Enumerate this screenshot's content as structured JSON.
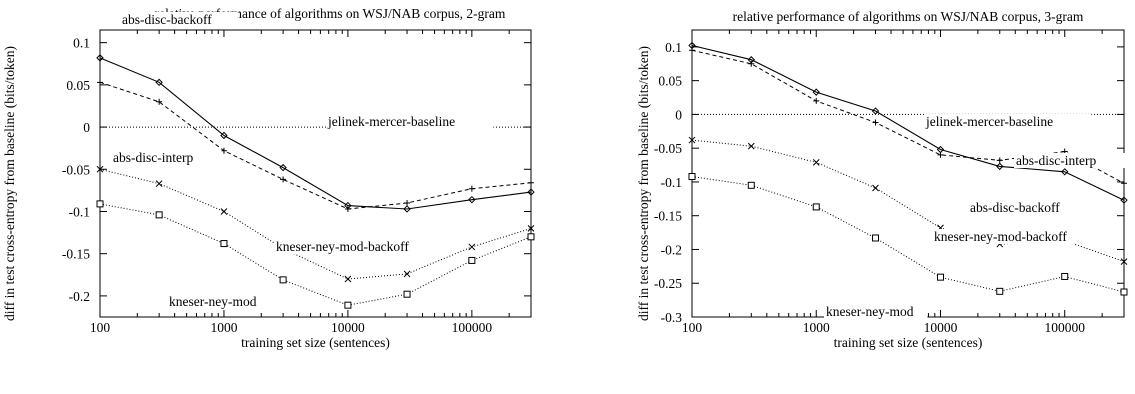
{
  "chart_data": [
    {
      "type": "line",
      "title": "relative performance of algorithms on WSJ/NAB corpus, 2-gram",
      "xlabel": "training set size (sentences)",
      "ylabel": "diff in test cross-entropy from baseline (bits/token)",
      "xscale": "log",
      "xlim": [
        100,
        300000
      ],
      "ylim": [
        -0.225,
        0.115
      ],
      "grid": false,
      "x": [
        100,
        300,
        1000,
        3000,
        10000,
        30000,
        100000,
        300000
      ],
      "xticks": [
        100,
        1000,
        10000,
        100000
      ],
      "xtick_labels": [
        "100",
        "1000",
        "10000",
        "100000"
      ],
      "yticks": [
        0.1,
        0.05,
        0,
        -0.05,
        -0.1,
        -0.15,
        -0.2
      ],
      "ytick_labels": [
        "0.1",
        "0.05",
        "0",
        "-0.05",
        "-0.1",
        "-0.15",
        "-0.2"
      ],
      "series": [
        {
          "name": "abs-disc-backoff",
          "style": "solid",
          "marker": "diamond",
          "values": [
            0.082,
            0.053,
            -0.01,
            -0.048,
            -0.093,
            -0.097,
            -0.086,
            -0.077
          ]
        },
        {
          "name": "abs-disc-interp",
          "style": "dashed",
          "marker": "plus",
          "values": [
            0.053,
            0.03,
            -0.028,
            -0.062,
            -0.097,
            -0.09,
            -0.073,
            -0.066
          ]
        },
        {
          "name": "jelinek-mercer-baseline",
          "style": "dotted",
          "marker": "none",
          "values": [
            0,
            0,
            0,
            0,
            0,
            0,
            0,
            0
          ]
        },
        {
          "name": "kneser-ney-mod-backoff",
          "style": "dotted",
          "marker": "cross",
          "values": [
            -0.05,
            -0.067,
            -0.1,
            -0.144,
            -0.18,
            -0.174,
            -0.142,
            -0.12
          ]
        },
        {
          "name": "kneser-ney-mod",
          "style": "dotted",
          "marker": "square",
          "values": [
            -0.091,
            -0.104,
            -0.138,
            -0.181,
            -0.211,
            -0.198,
            -0.158,
            -0.13
          ]
        }
      ],
      "annotations": [
        {
          "text": "abs-disc-backoff",
          "series": "abs-disc-backoff"
        },
        {
          "text": "jelinek-mercer-baseline",
          "series": "jelinek-mercer-baseline"
        },
        {
          "text": "abs-disc-interp",
          "series": "abs-disc-interp"
        },
        {
          "text": "kneser-ney-mod-backoff",
          "series": "kneser-ney-mod-backoff"
        },
        {
          "text": "kneser-ney-mod",
          "series": "kneser-ney-mod"
        }
      ]
    },
    {
      "type": "line",
      "title": "relative performance of algorithms on WSJ/NAB corpus, 3-gram",
      "xlabel": "training set size (sentences)",
      "ylabel": "diff in test cross-entropy from baseline (bits/token)",
      "xscale": "log",
      "xlim": [
        100,
        300000
      ],
      "ylim": [
        -0.3,
        0.125
      ],
      "grid": false,
      "x": [
        100,
        300,
        1000,
        3000,
        10000,
        30000,
        100000,
        300000
      ],
      "xticks": [
        100,
        1000,
        10000,
        100000
      ],
      "xtick_labels": [
        "100",
        "1000",
        "10000",
        "100000"
      ],
      "yticks": [
        0.1,
        0.05,
        0,
        -0.05,
        -0.1,
        -0.15,
        -0.2,
        -0.25,
        -0.3
      ],
      "ytick_labels": [
        "0.1",
        "0.05",
        "0",
        "-0.05",
        "-0.1",
        "-0.15",
        "-0.2",
        "-0.25",
        "-0.3"
      ],
      "series": [
        {
          "name": "abs-disc-backoff",
          "style": "solid",
          "marker": "diamond",
          "values": [
            0.102,
            0.081,
            0.033,
            0.005,
            -0.052,
            -0.077,
            -0.085,
            -0.127
          ]
        },
        {
          "name": "abs-disc-interp",
          "style": "dashed",
          "marker": "plus",
          "values": [
            0.095,
            0.075,
            0.02,
            -0.012,
            -0.06,
            -0.068,
            -0.055,
            -0.102
          ]
        },
        {
          "name": "jelinek-mercer-baseline",
          "style": "dotted",
          "marker": "none",
          "values": [
            0,
            0,
            0,
            0,
            0,
            0,
            0,
            0
          ]
        },
        {
          "name": "kneser-ney-mod-backoff",
          "style": "dotted",
          "marker": "cross",
          "values": [
            -0.038,
            -0.047,
            -0.071,
            -0.109,
            -0.168,
            -0.192,
            -0.187,
            -0.218
          ]
        },
        {
          "name": "kneser-ney-mod",
          "style": "dotted",
          "marker": "square",
          "values": [
            -0.092,
            -0.105,
            -0.137,
            -0.183,
            -0.241,
            -0.262,
            -0.24,
            -0.263
          ]
        }
      ],
      "annotations": [
        {
          "text": "jelinek-mercer-baseline",
          "series": "jelinek-mercer-baseline"
        },
        {
          "text": "abs-disc-interp",
          "series": "abs-disc-interp"
        },
        {
          "text": "abs-disc-backoff",
          "series": "abs-disc-backoff"
        },
        {
          "text": "kneser-ney-mod-backoff",
          "series": "kneser-ney-mod-backoff"
        },
        {
          "text": "kneser-ney-mod",
          "series": "kneser-ney-mod"
        }
      ]
    }
  ]
}
